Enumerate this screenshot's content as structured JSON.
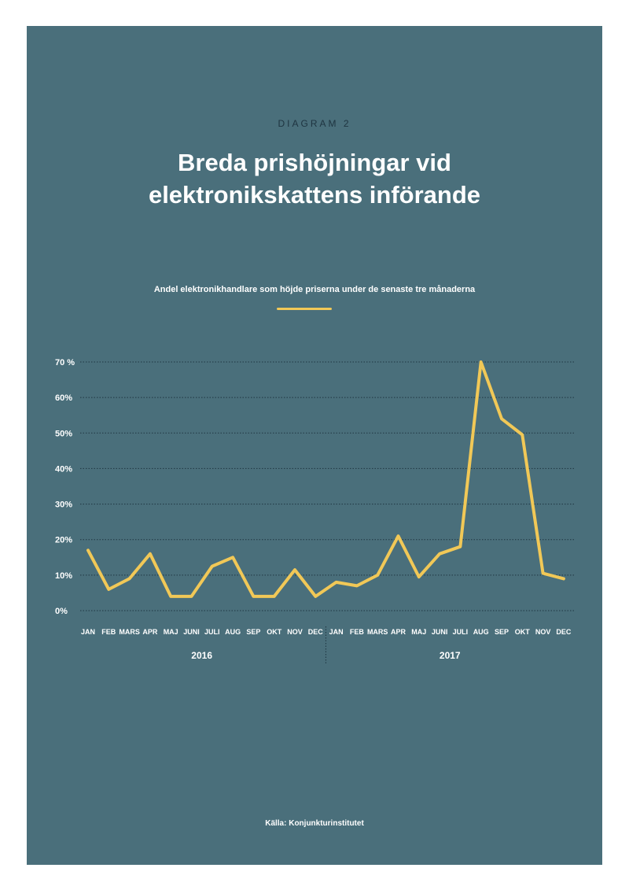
{
  "header": {
    "kicker": "DIAGRAM 2",
    "title_line1": "Breda prishöjningar vid",
    "title_line2": "elektronikskattens införande"
  },
  "chart_data": {
    "type": "line",
    "title": "Breda prishöjningar vid elektronikskattens införande",
    "subtitle": "Andel elektronikhandlare som höjde priserna under de senaste tre månaderna",
    "categories": [
      "JAN",
      "FEB",
      "MARS",
      "APR",
      "MAJ",
      "JUNI",
      "JULI",
      "AUG",
      "SEP",
      "OKT",
      "NOV",
      "DEC",
      "JAN",
      "FEB",
      "MARS",
      "APR",
      "MAJ",
      "JUNI",
      "JULI",
      "AUG",
      "SEP",
      "OKT",
      "NOV",
      "DEC"
    ],
    "year_labels": [
      "2016",
      "2017"
    ],
    "series": [
      {
        "values": [
          17,
          6,
          9,
          16,
          4,
          4,
          12.5,
          15,
          4,
          4,
          11.5,
          4,
          8,
          7,
          10,
          21,
          9.5,
          16,
          18,
          70,
          54,
          49.5,
          10.5,
          9
        ]
      }
    ],
    "ylim": [
      0,
      70
    ],
    "yticks": [
      0,
      10,
      20,
      30,
      40,
      50,
      60,
      70
    ],
    "ytick_labels": [
      "0%",
      "10%",
      "20%",
      "30%",
      "40%",
      "50%",
      "60%",
      "70 %"
    ],
    "grid": true,
    "colors": {
      "line": "#f1c857",
      "background": "#4a6f7b",
      "grid": "#1f3642"
    }
  },
  "footer": {
    "source": "Källa: Konjunkturinstitutet"
  }
}
